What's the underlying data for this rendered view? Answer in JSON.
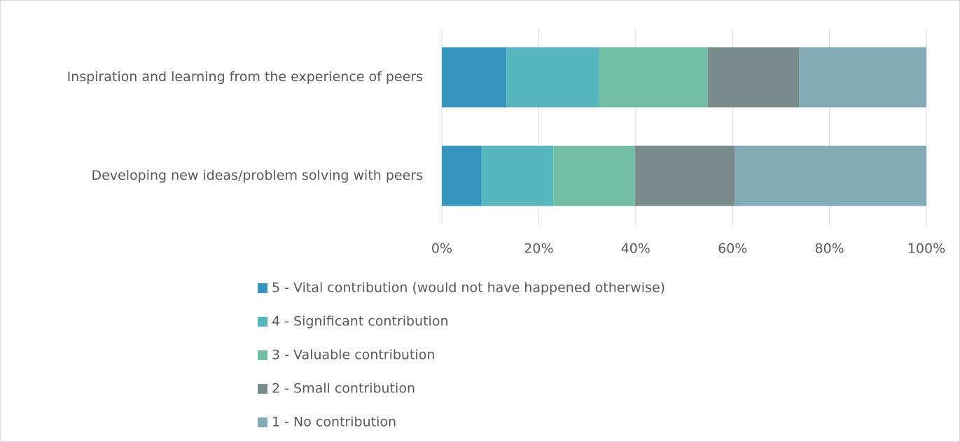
{
  "chart_data": {
    "type": "stacked_bar",
    "orientation": "horizontal",
    "categories": [
      "Inspiration and learning from the experience of peers",
      "Developing new ideas/problem solving with peers"
    ],
    "series": [
      {
        "name": "5 - Vital contribution (would not have happened otherwise)",
        "color": "#3595bc",
        "values": [
          13.3,
          8.2
        ]
      },
      {
        "name": "4 - Significant contribution",
        "color": "#57b6be",
        "values": [
          19.2,
          14.8
        ]
      },
      {
        "name": "3 - Valuable contribution",
        "color": "#72bda4",
        "values": [
          22.4,
          16.9
        ]
      },
      {
        "name": "2 - Small contribution",
        "color": "#798b8d",
        "values": [
          18.8,
          20.6
        ]
      },
      {
        "name": "1 - No contribution",
        "color": "#84abb5",
        "values": [
          26.3,
          39.5
        ]
      }
    ],
    "xlim": [
      0,
      100
    ],
    "xticks": [
      {
        "value": 0,
        "label": "0%"
      },
      {
        "value": 20,
        "label": "20%"
      },
      {
        "value": 40,
        "label": "40%"
      },
      {
        "value": 60,
        "label": "60%"
      },
      {
        "value": 80,
        "label": "80%"
      },
      {
        "value": 100,
        "label": "100%"
      }
    ],
    "grid": true,
    "legend": "bottom"
  }
}
